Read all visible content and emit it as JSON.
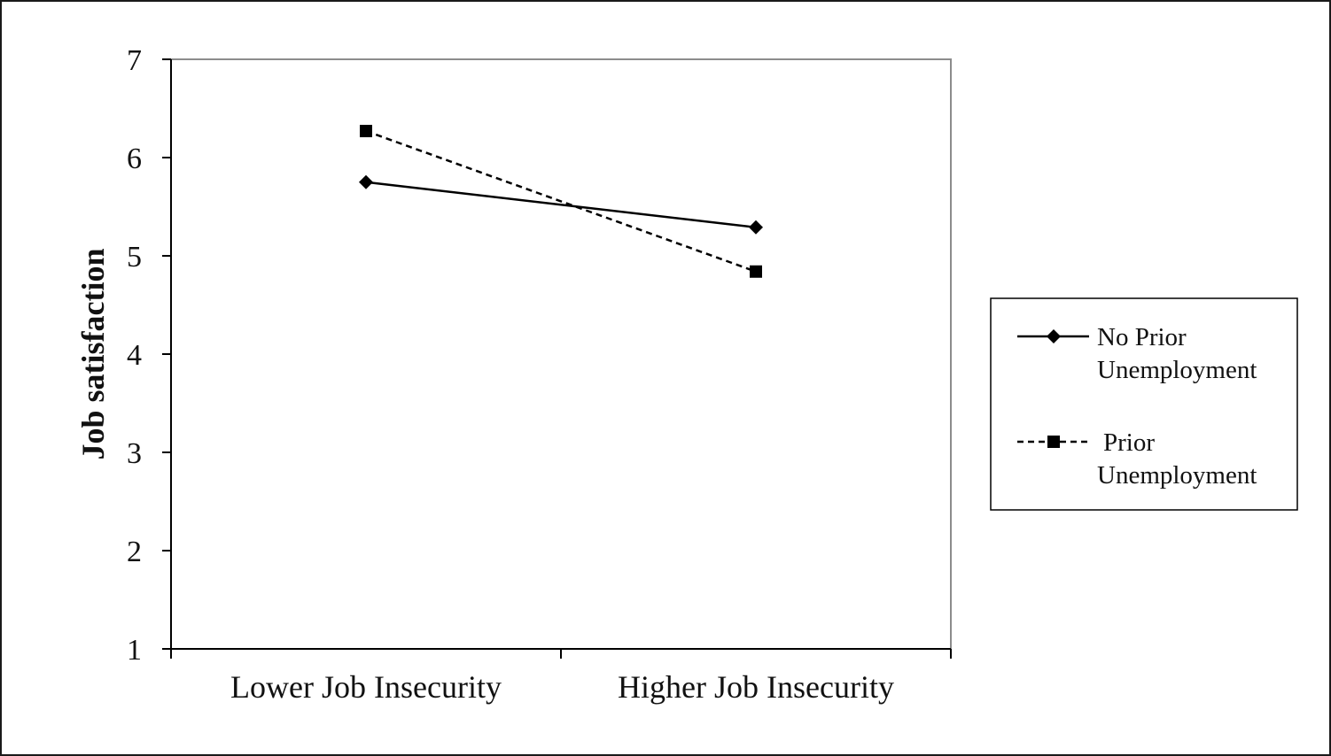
{
  "chart_data": {
    "type": "line",
    "title": "",
    "xlabel": "",
    "ylabel": "Job satisfaction",
    "ylim": [
      1,
      7
    ],
    "yticks": [
      "1",
      "2",
      "3",
      "4",
      "5",
      "6",
      "7"
    ],
    "categories": [
      "Lower Job Insecurity",
      "Higher Job Insecurity"
    ],
    "grid": false,
    "legend_position": "right",
    "series": [
      {
        "name": "No Prior Unemployment",
        "values": [
          5.75,
          5.29
        ],
        "line_style": "solid",
        "marker": "diamond",
        "color": "#000000"
      },
      {
        "name": "Prior Unemployment",
        "values": [
          6.27,
          4.84
        ],
        "line_style": "dashed",
        "marker": "square",
        "color": "#000000"
      }
    ]
  },
  "legend": {
    "entries": [
      {
        "line1": "No Prior",
        "line2": "Unemployment"
      },
      {
        "line1": "Prior",
        "line2": "Unemployment"
      }
    ]
  }
}
